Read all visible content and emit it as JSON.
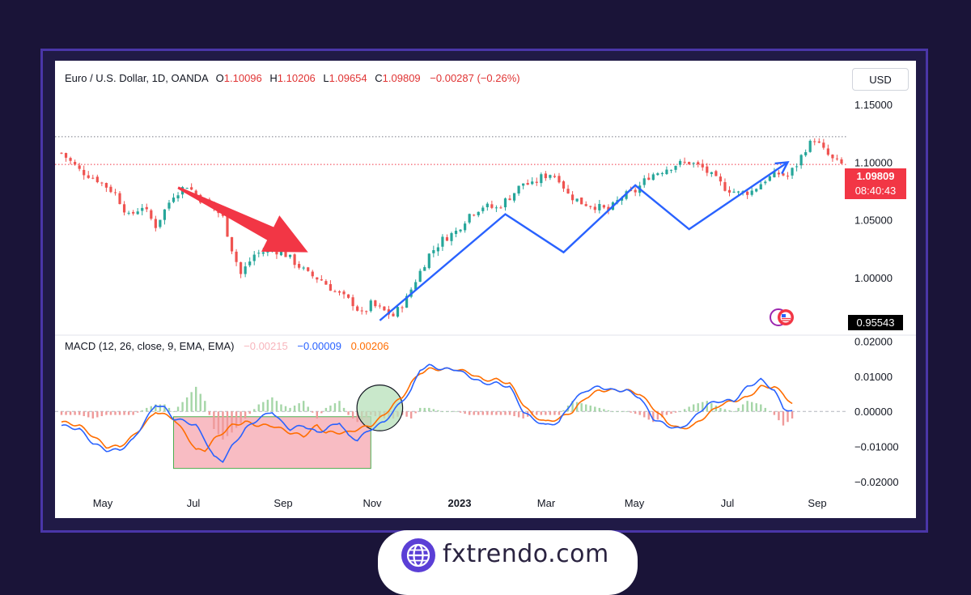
{
  "header": {
    "instrument": "Euro / U.S. Dollar, 1D, OANDA",
    "open_label": "O",
    "open_value": "1.10096",
    "high_label": "H",
    "high_value": "1.10206",
    "low_label": "L",
    "low_value": "1.09654",
    "close_label": "C",
    "close_value": "1.09809",
    "change": "−0.00287 (−0.26%)"
  },
  "currency_button": "USD",
  "price_tag": {
    "price": "1.09809",
    "countdown": "08:40:43"
  },
  "low_tag": "0.95543",
  "macd_legend": {
    "title": "MACD (12, 26, close, 9, EMA, EMA)",
    "histogram": "−0.00215",
    "macd": "−0.00009",
    "signal": "0.00206"
  },
  "brand": {
    "text": "fxtrendo.com"
  },
  "colors": {
    "up": "#26a69a",
    "down": "#ef5350",
    "macd": "#2962ff",
    "signal": "#ff6d00",
    "arrow": "#f23645",
    "zigzag": "#2962ff",
    "background": "#1a1438",
    "frame": "#4a36a8"
  },
  "chart_data": [
    {
      "type": "candlestick",
      "title": "",
      "x_tick_labels": [
        "May",
        "Jul",
        "Sep",
        "Nov",
        "2023",
        "Mar",
        "May",
        "Jul",
        "Sep"
      ],
      "y_tick_labels": [
        "1.15000",
        "1.10000",
        "1.05000",
        "1.00000"
      ],
      "y_ticks": [
        1.15,
        1.1,
        1.05,
        1.0
      ],
      "ylim": [
        0.9545,
        1.1535
      ],
      "close_path": [
        [
          0,
          1.108
        ],
        [
          4,
          1.093
        ],
        [
          8,
          1.085
        ],
        [
          12,
          1.073
        ],
        [
          15,
          1.053
        ],
        [
          18,
          1.062
        ],
        [
          21,
          1.045
        ],
        [
          25,
          1.072
        ],
        [
          28,
          1.08
        ],
        [
          31,
          1.068
        ],
        [
          33,
          1.065
        ],
        [
          36,
          1.052
        ],
        [
          38,
          1.025
        ],
        [
          40,
          1.003
        ],
        [
          43,
          1.02
        ],
        [
          47,
          1.025
        ],
        [
          50,
          1.02
        ],
        [
          53,
          1.01
        ],
        [
          55,
          1.003
        ],
        [
          58,
          0.998
        ],
        [
          61,
          0.988
        ],
        [
          63,
          0.983
        ],
        [
          65,
          0.978
        ],
        [
          67,
          0.968
        ],
        [
          69,
          0.977
        ],
        [
          71,
          0.973
        ],
        [
          74,
          0.967
        ],
        [
          77,
          0.982
        ],
        [
          79,
          0.998
        ],
        [
          82,
          1.02
        ],
        [
          85,
          1.033
        ],
        [
          88,
          1.04
        ],
        [
          91,
          1.055
        ],
        [
          94,
          1.062
        ],
        [
          97,
          1.06
        ],
        [
          100,
          1.07
        ],
        [
          103,
          1.082
        ],
        [
          105,
          1.08
        ],
        [
          107,
          1.087
        ],
        [
          109,
          1.09
        ],
        [
          111,
          1.086
        ],
        [
          113,
          1.072
        ],
        [
          116,
          1.065
        ],
        [
          119,
          1.062
        ],
        [
          122,
          1.058
        ],
        [
          125,
          1.07
        ],
        [
          128,
          1.075
        ],
        [
          131,
          1.088
        ],
        [
          134,
          1.093
        ],
        [
          137,
          1.098
        ],
        [
          140,
          1.1
        ],
        [
          143,
          1.095
        ],
        [
          145,
          1.088
        ],
        [
          148,
          1.078
        ],
        [
          151,
          1.073
        ],
        [
          154,
          1.075
        ],
        [
          157,
          1.085
        ],
        [
          160,
          1.09
        ],
        [
          162,
          1.088
        ],
        [
          164,
          1.098
        ],
        [
          166,
          1.112
        ],
        [
          168,
          1.12
        ],
        [
          170,
          1.11
        ],
        [
          172,
          1.102
        ],
        [
          174,
          1.098
        ]
      ],
      "horizontal_levels": [
        {
          "value": 1.12206,
          "style": "dotted",
          "color": "#787b86"
        },
        {
          "value": 1.09809,
          "style": "dotted",
          "color": "#f23645"
        }
      ],
      "annotations": [
        {
          "kind": "arrow",
          "color": "#f23645",
          "from": [
            26,
            1.078
          ],
          "to": [
            55,
            1.022
          ]
        },
        {
          "kind": "zigzag",
          "color": "#2962ff",
          "points": [
            [
              71,
              0.963
            ],
            [
              99,
              1.055
            ],
            [
              112,
              1.022
            ],
            [
              128,
              1.08
            ],
            [
              140,
              1.042
            ],
            [
              162,
              1.1
            ]
          ]
        }
      ],
      "markers": {
        "last_price": 1.09809,
        "session_low": 0.95543
      }
    },
    {
      "type": "line",
      "title": "",
      "y_tick_labels": [
        "0.02000",
        "0.01000",
        "0.00000",
        "−0.01000",
        "−0.02000"
      ],
      "y_ticks": [
        0.02,
        0.01,
        0.0,
        -0.01,
        -0.02
      ],
      "ylim": [
        -0.0225,
        0.021
      ],
      "series": [
        {
          "name": "MACD",
          "color": "#2962ff",
          "points": [
            [
              0,
              -0.004
            ],
            [
              4,
              -0.005
            ],
            [
              7,
              -0.009
            ],
            [
              10,
              -0.011
            ],
            [
              13,
              -0.011
            ],
            [
              16,
              -0.008
            ],
            [
              19,
              -0.002
            ],
            [
              21,
              0.002
            ],
            [
              23,
              0.001
            ],
            [
              25,
              -0.002
            ],
            [
              28,
              -0.003
            ],
            [
              30,
              -0.004
            ],
            [
              32,
              -0.008
            ],
            [
              34,
              -0.013
            ],
            [
              36,
              -0.014
            ],
            [
              38,
              -0.01
            ],
            [
              41,
              -0.005
            ],
            [
              44,
              -0.002
            ],
            [
              47,
              0.0
            ],
            [
              49,
              -0.003
            ],
            [
              51,
              -0.005
            ],
            [
              54,
              -0.004
            ],
            [
              57,
              -0.006
            ],
            [
              59,
              -0.005
            ],
            [
              62,
              -0.003
            ],
            [
              64,
              -0.007
            ],
            [
              66,
              -0.008
            ],
            [
              69,
              -0.005
            ],
            [
              72,
              -0.003
            ],
            [
              74,
              0.0
            ],
            [
              76,
              0.003
            ],
            [
              78,
              0.006
            ],
            [
              80,
              0.012
            ],
            [
              82,
              0.013
            ],
            [
              85,
              0.012
            ],
            [
              88,
              0.012
            ],
            [
              91,
              0.01
            ],
            [
              94,
              0.008
            ],
            [
              97,
              0.008
            ],
            [
              100,
              0.007
            ],
            [
              103,
              0.0
            ],
            [
              105,
              -0.002
            ],
            [
              108,
              -0.004
            ],
            [
              111,
              -0.003
            ],
            [
              114,
              0.003
            ],
            [
              117,
              0.006
            ],
            [
              120,
              0.007
            ],
            [
              123,
              0.006
            ],
            [
              126,
              0.006
            ],
            [
              129,
              0.004
            ],
            [
              132,
              -0.002
            ],
            [
              135,
              -0.004
            ],
            [
              138,
              -0.005
            ],
            [
              141,
              -0.002
            ],
            [
              144,
              0.002
            ],
            [
              147,
              0.003
            ],
            [
              150,
              0.003
            ],
            [
              153,
              0.007
            ],
            [
              156,
              0.009
            ],
            [
              159,
              0.006
            ],
            [
              161,
              0.001
            ],
            [
              163,
              0.0
            ]
          ]
        },
        {
          "name": "Signal",
          "color": "#ff6d00",
          "points": [
            [
              0,
              -0.003
            ],
            [
              4,
              -0.004
            ],
            [
              7,
              -0.007
            ],
            [
              10,
              -0.01
            ],
            [
              13,
              -0.01
            ],
            [
              16,
              -0.007
            ],
            [
              19,
              -0.003
            ],
            [
              21,
              0.0
            ],
            [
              23,
              -0.001
            ],
            [
              25,
              -0.002
            ],
            [
              28,
              -0.007
            ],
            [
              30,
              -0.011
            ],
            [
              32,
              -0.011
            ],
            [
              34,
              -0.008
            ],
            [
              36,
              -0.006
            ],
            [
              38,
              -0.004
            ],
            [
              41,
              -0.003
            ],
            [
              44,
              -0.004
            ],
            [
              47,
              -0.004
            ],
            [
              49,
              -0.005
            ],
            [
              51,
              -0.006
            ],
            [
              54,
              -0.007
            ],
            [
              57,
              -0.004
            ],
            [
              59,
              -0.006
            ],
            [
              62,
              -0.006
            ],
            [
              64,
              -0.006
            ],
            [
              66,
              -0.005
            ],
            [
              69,
              -0.004
            ],
            [
              72,
              -0.001
            ],
            [
              74,
              0.002
            ],
            [
              76,
              0.004
            ],
            [
              78,
              0.008
            ],
            [
              80,
              0.011
            ],
            [
              82,
              0.012
            ],
            [
              85,
              0.012
            ],
            [
              88,
              0.012
            ],
            [
              91,
              0.011
            ],
            [
              94,
              0.009
            ],
            [
              97,
              0.009
            ],
            [
              100,
              0.008
            ],
            [
              103,
              0.002
            ],
            [
              105,
              -0.001
            ],
            [
              108,
              -0.003
            ],
            [
              111,
              -0.002
            ],
            [
              114,
              0.0
            ],
            [
              117,
              0.004
            ],
            [
              120,
              0.006
            ],
            [
              123,
              0.006
            ],
            [
              126,
              0.006
            ],
            [
              129,
              0.005
            ],
            [
              132,
              0.001
            ],
            [
              135,
              -0.003
            ],
            [
              138,
              -0.005
            ],
            [
              141,
              -0.004
            ],
            [
              144,
              -0.001
            ],
            [
              147,
              0.002
            ],
            [
              150,
              0.003
            ],
            [
              153,
              0.004
            ],
            [
              156,
              0.007
            ],
            [
              159,
              0.007
            ],
            [
              161,
              0.005
            ],
            [
              163,
              0.002
            ]
          ]
        }
      ],
      "histogram": {
        "name": "Histogram"
      },
      "zero_line": 0.0,
      "annotations": [
        {
          "kind": "rectangle",
          "color": "#f7b5bc",
          "x_from": 25,
          "x_to": 69,
          "y_from": -0.0015,
          "y_to": -0.0162
        },
        {
          "kind": "circle",
          "color": "#b7e0b9",
          "center": [
            71,
            0.001
          ],
          "radius_y": 0.0065
        }
      ]
    }
  ]
}
